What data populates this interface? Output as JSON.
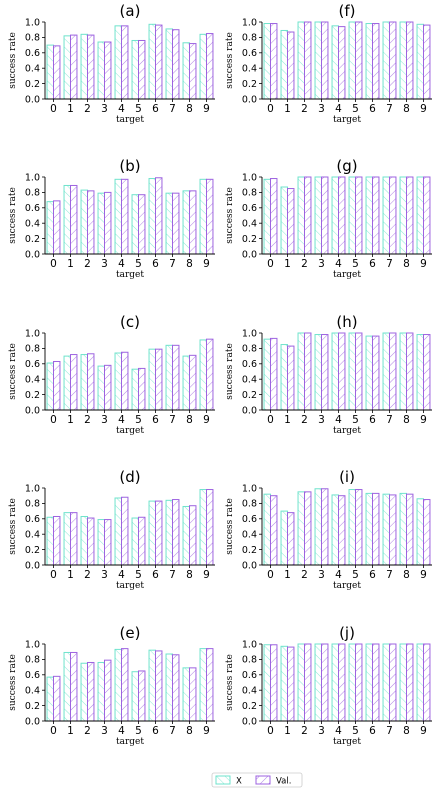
{
  "legend": {
    "items": [
      {
        "label": "X",
        "color": "#6fe3cc",
        "hatch": "\\\\"
      },
      {
        "label": "Val.",
        "color": "#9d63e0",
        "hatch": "//"
      }
    ],
    "placement": "bottom-center"
  },
  "chart_data": [
    {
      "type": "bar",
      "title": "(a)",
      "xlabel": "target",
      "ylabel": "success rate",
      "ylim": [
        0,
        1.0
      ],
      "yticks": [
        "0.0",
        "0.2",
        "0.4",
        "0.6",
        "0.8",
        "1.0"
      ],
      "categories": [
        "0",
        "1",
        "2",
        "3",
        "4",
        "5",
        "6",
        "7",
        "8",
        "9"
      ],
      "series": [
        {
          "name": "X",
          "values": [
            0.7,
            0.82,
            0.84,
            0.74,
            0.95,
            0.76,
            0.97,
            0.91,
            0.73,
            0.84
          ]
        },
        {
          "name": "Val.",
          "values": [
            0.69,
            0.83,
            0.83,
            0.74,
            0.95,
            0.76,
            0.96,
            0.9,
            0.72,
            0.85
          ]
        }
      ]
    },
    {
      "type": "bar",
      "title": "(f)",
      "xlabel": "target",
      "ylabel": "success rate",
      "ylim": [
        0,
        1.0
      ],
      "yticks": [
        "0.0",
        "0.2",
        "0.4",
        "0.6",
        "0.8",
        "1.0"
      ],
      "categories": [
        "0",
        "1",
        "2",
        "3",
        "4",
        "5",
        "6",
        "7",
        "8",
        "9"
      ],
      "series": [
        {
          "name": "X",
          "values": [
            0.98,
            0.89,
            1.0,
            1.0,
            0.95,
            1.0,
            0.98,
            1.0,
            1.0,
            0.97
          ]
        },
        {
          "name": "Val.",
          "values": [
            0.98,
            0.87,
            1.0,
            1.0,
            0.94,
            1.0,
            0.98,
            1.0,
            1.0,
            0.96
          ]
        }
      ]
    },
    {
      "type": "bar",
      "title": "(b)",
      "xlabel": "target",
      "ylabel": "success rate",
      "ylim": [
        0,
        1.0
      ],
      "yticks": [
        "0.0",
        "0.2",
        "0.4",
        "0.6",
        "0.8",
        "1.0"
      ],
      "categories": [
        "0",
        "1",
        "2",
        "3",
        "4",
        "5",
        "6",
        "7",
        "8",
        "9"
      ],
      "series": [
        {
          "name": "X",
          "values": [
            0.68,
            0.89,
            0.83,
            0.79,
            0.97,
            0.77,
            0.98,
            0.79,
            0.82,
            0.97
          ]
        },
        {
          "name": "Val.",
          "values": [
            0.69,
            0.89,
            0.82,
            0.8,
            0.97,
            0.77,
            0.99,
            0.79,
            0.82,
            0.97
          ]
        }
      ]
    },
    {
      "type": "bar",
      "title": "(g)",
      "xlabel": "target",
      "ylabel": "success rate",
      "ylim": [
        0,
        1.0
      ],
      "yticks": [
        "0.0",
        "0.2",
        "0.4",
        "0.6",
        "0.8",
        "1.0"
      ],
      "categories": [
        "0",
        "1",
        "2",
        "3",
        "4",
        "5",
        "6",
        "7",
        "8",
        "9"
      ],
      "series": [
        {
          "name": "X",
          "values": [
            0.97,
            0.87,
            1.0,
            1.0,
            1.0,
            1.0,
            1.0,
            1.0,
            1.0,
            1.0
          ]
        },
        {
          "name": "Val.",
          "values": [
            0.98,
            0.85,
            1.0,
            1.0,
            1.0,
            1.0,
            1.0,
            1.0,
            1.0,
            1.0
          ]
        }
      ]
    },
    {
      "type": "bar",
      "title": "(c)",
      "xlabel": "target",
      "ylabel": "success rate",
      "ylim": [
        0,
        1.0
      ],
      "yticks": [
        "0.0",
        "0.2",
        "0.4",
        "0.6",
        "0.8",
        "1.0"
      ],
      "categories": [
        "0",
        "1",
        "2",
        "3",
        "4",
        "5",
        "6",
        "7",
        "8",
        "9"
      ],
      "series": [
        {
          "name": "X",
          "values": [
            0.61,
            0.7,
            0.72,
            0.57,
            0.74,
            0.53,
            0.79,
            0.84,
            0.7,
            0.91
          ]
        },
        {
          "name": "Val.",
          "values": [
            0.63,
            0.72,
            0.73,
            0.58,
            0.75,
            0.54,
            0.79,
            0.84,
            0.71,
            0.92
          ]
        }
      ]
    },
    {
      "type": "bar",
      "title": "(h)",
      "xlabel": "target",
      "ylabel": "success rate",
      "ylim": [
        0,
        1.0
      ],
      "yticks": [
        "0.0",
        "0.2",
        "0.4",
        "0.6",
        "0.8",
        "1.0"
      ],
      "categories": [
        "0",
        "1",
        "2",
        "3",
        "4",
        "5",
        "6",
        "7",
        "8",
        "9"
      ],
      "series": [
        {
          "name": "X",
          "values": [
            0.92,
            0.85,
            1.0,
            0.98,
            1.0,
            1.0,
            0.96,
            1.0,
            1.0,
            0.98
          ]
        },
        {
          "name": "Val.",
          "values": [
            0.93,
            0.83,
            1.0,
            0.98,
            1.0,
            1.0,
            0.96,
            1.0,
            1.0,
            0.98
          ]
        }
      ]
    },
    {
      "type": "bar",
      "title": "(d)",
      "xlabel": "target",
      "ylabel": "success rate",
      "ylim": [
        0,
        1.0
      ],
      "yticks": [
        "0.0",
        "0.2",
        "0.4",
        "0.6",
        "0.8",
        "1.0"
      ],
      "categories": [
        "0",
        "1",
        "2",
        "3",
        "4",
        "5",
        "6",
        "7",
        "8",
        "9"
      ],
      "series": [
        {
          "name": "X",
          "values": [
            0.62,
            0.68,
            0.63,
            0.59,
            0.87,
            0.61,
            0.83,
            0.84,
            0.76,
            0.98
          ]
        },
        {
          "name": "Val.",
          "values": [
            0.63,
            0.68,
            0.61,
            0.59,
            0.88,
            0.62,
            0.83,
            0.85,
            0.77,
            0.98
          ]
        }
      ]
    },
    {
      "type": "bar",
      "title": "(i)",
      "xlabel": "target",
      "ylabel": "success rate",
      "ylim": [
        0,
        1.0
      ],
      "yticks": [
        "0.0",
        "0.2",
        "0.4",
        "0.6",
        "0.8",
        "1.0"
      ],
      "categories": [
        "0",
        "1",
        "2",
        "3",
        "4",
        "5",
        "6",
        "7",
        "8",
        "9"
      ],
      "series": [
        {
          "name": "X",
          "values": [
            0.92,
            0.7,
            0.95,
            0.99,
            0.91,
            0.98,
            0.93,
            0.92,
            0.93,
            0.86
          ]
        },
        {
          "name": "Val.",
          "values": [
            0.9,
            0.68,
            0.95,
            0.99,
            0.9,
            0.98,
            0.93,
            0.91,
            0.92,
            0.85
          ]
        }
      ]
    },
    {
      "type": "bar",
      "title": "(e)",
      "xlabel": "target",
      "ylabel": "success rate",
      "ylim": [
        0,
        1.0
      ],
      "yticks": [
        "0.0",
        "0.2",
        "0.4",
        "0.6",
        "0.8",
        "1.0"
      ],
      "categories": [
        "0",
        "1",
        "2",
        "3",
        "4",
        "5",
        "6",
        "7",
        "8",
        "9"
      ],
      "series": [
        {
          "name": "X",
          "values": [
            0.57,
            0.89,
            0.75,
            0.76,
            0.93,
            0.64,
            0.92,
            0.87,
            0.69,
            0.94
          ]
        },
        {
          "name": "Val.",
          "values": [
            0.58,
            0.89,
            0.76,
            0.79,
            0.94,
            0.65,
            0.91,
            0.86,
            0.69,
            0.94
          ]
        }
      ]
    },
    {
      "type": "bar",
      "title": "(j)",
      "xlabel": "target",
      "ylabel": "success rate",
      "ylim": [
        0,
        1.0
      ],
      "yticks": [
        "0.0",
        "0.2",
        "0.4",
        "0.6",
        "0.8",
        "1.0"
      ],
      "categories": [
        "0",
        "1",
        "2",
        "3",
        "4",
        "5",
        "6",
        "7",
        "8",
        "9"
      ],
      "series": [
        {
          "name": "X",
          "values": [
            0.99,
            0.97,
            1.0,
            1.0,
            1.0,
            1.0,
            1.0,
            1.0,
            1.0,
            1.0
          ]
        },
        {
          "name": "Val.",
          "values": [
            0.99,
            0.96,
            1.0,
            1.0,
            1.0,
            1.0,
            1.0,
            1.0,
            1.0,
            1.0
          ]
        }
      ]
    }
  ]
}
